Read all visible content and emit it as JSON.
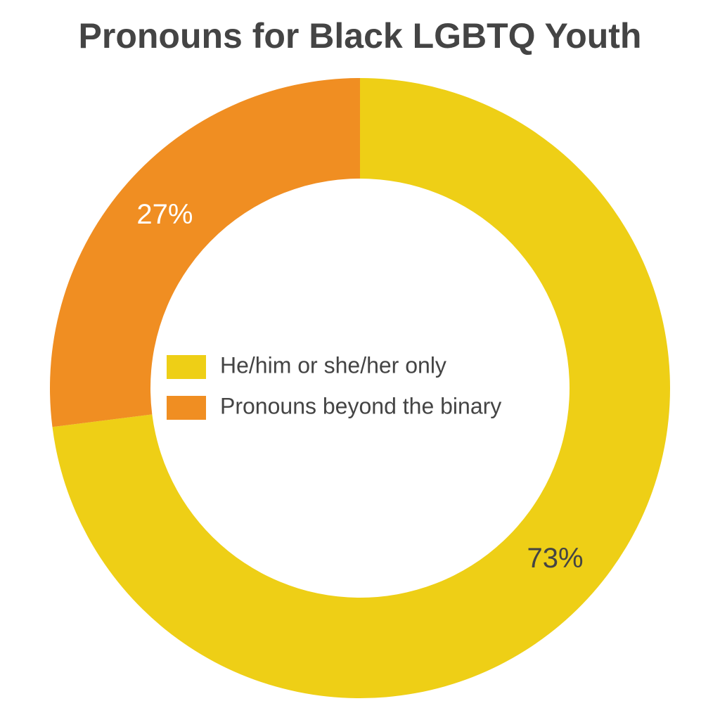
{
  "chart_data": {
    "type": "pie",
    "donut": true,
    "title": "Pronouns for Black LGBTQ Youth",
    "categories": [
      "He/him or she/her only",
      "Pronouns beyond the binary"
    ],
    "values": [
      73,
      27
    ],
    "value_labels": [
      "73%",
      "27%"
    ],
    "colors": [
      "#eecf16",
      "#f08e22"
    ],
    "value_label_colors": [
      "#444444",
      "#ffffff"
    ],
    "legend": "center"
  }
}
